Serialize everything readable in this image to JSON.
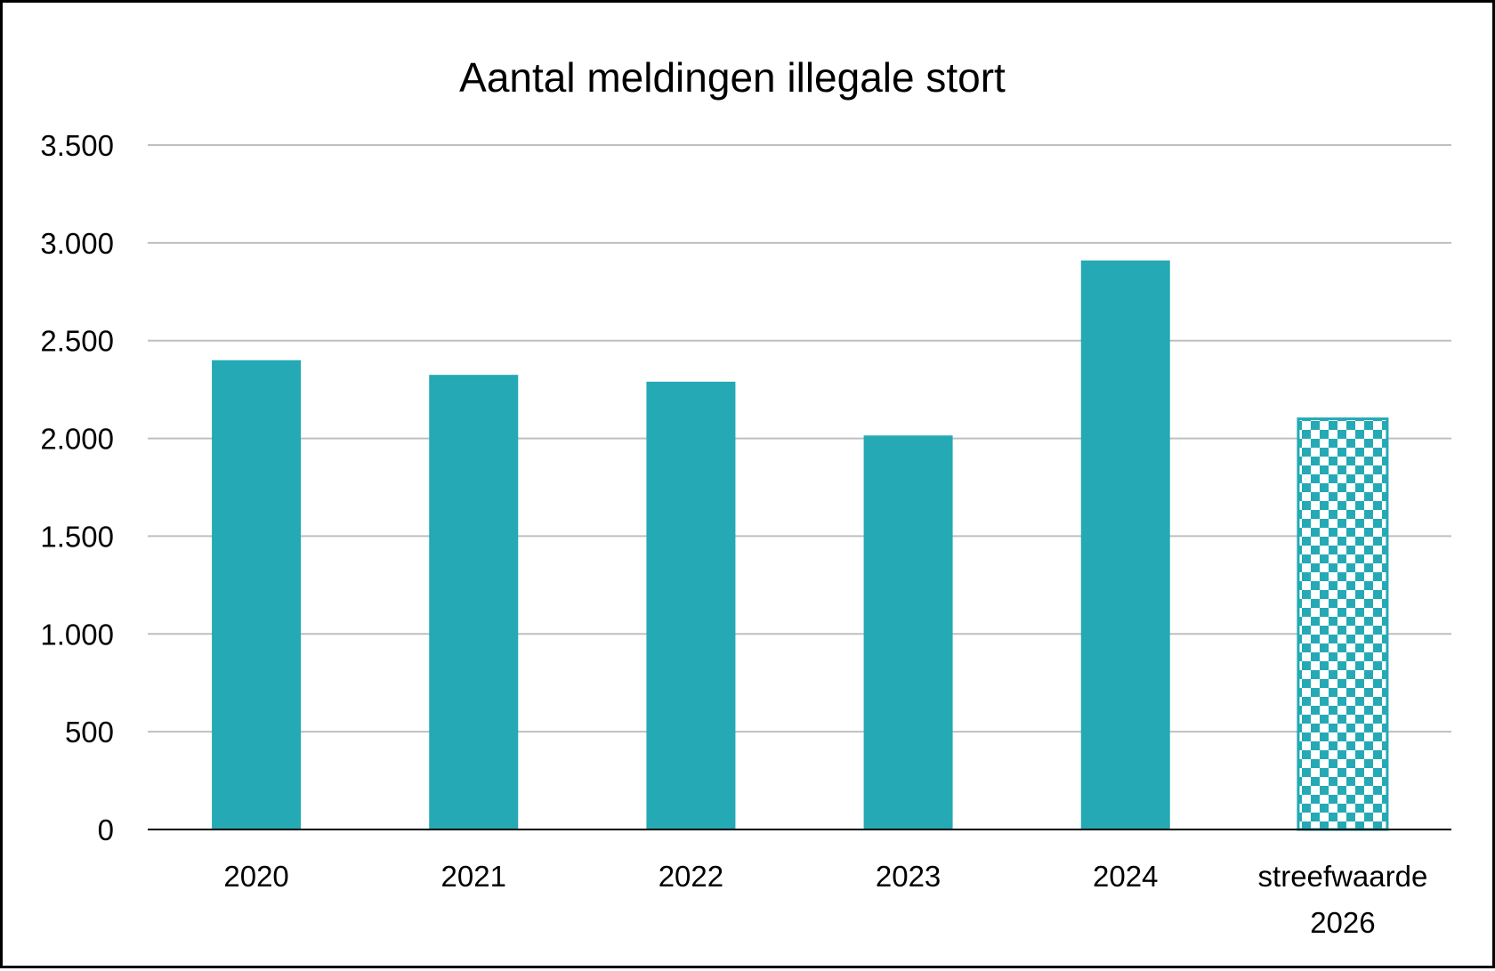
{
  "chart_data": {
    "type": "bar",
    "title": "Aantal meldingen illegale stort",
    "xlabel": "",
    "ylabel": "",
    "categories": [
      "2020",
      "2021",
      "2022",
      "2023",
      "2024",
      "streefwaarde 2026"
    ],
    "category_lines": [
      [
        "2020"
      ],
      [
        "2021"
      ],
      [
        "2022"
      ],
      [
        "2023"
      ],
      [
        "2024"
      ],
      [
        "streefwaarde",
        "2026"
      ]
    ],
    "values": [
      2400,
      2325,
      2290,
      2015,
      2910,
      2100
    ],
    "bar_styles": [
      "solid",
      "solid",
      "solid",
      "solid",
      "solid",
      "checkered"
    ],
    "ylim": [
      0,
      3500
    ],
    "yticks": [
      0,
      500,
      1000,
      1500,
      2000,
      2500,
      3000,
      3500
    ],
    "ytick_labels": [
      "0",
      "500",
      "1.000",
      "1.500",
      "2.000",
      "2.500",
      "3.000",
      "3.500"
    ],
    "grid": true,
    "legend": "none",
    "colors": {
      "bar": "#24A9B5",
      "pattern_light": "#FFFFFF",
      "grid": "#BFBFBF",
      "axis": "#000000",
      "text": "#000000",
      "border": "#000000"
    }
  }
}
